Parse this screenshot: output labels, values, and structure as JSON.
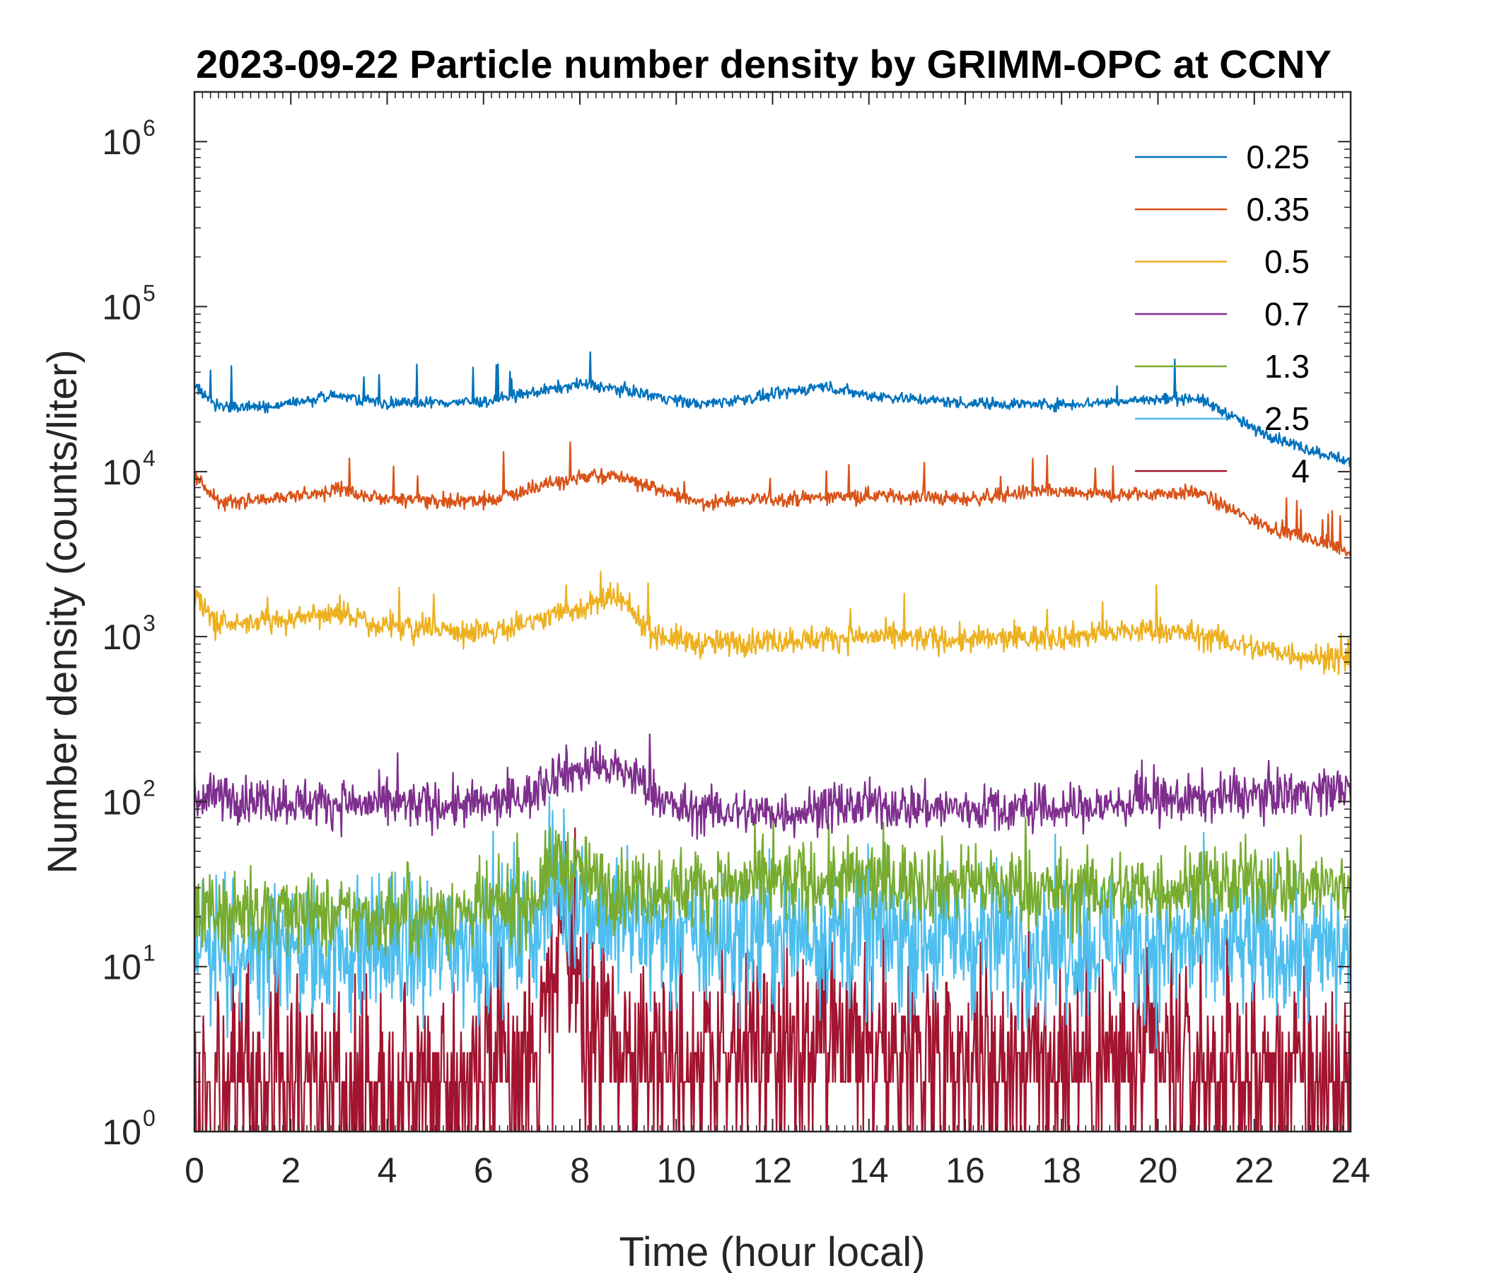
{
  "chart_data": {
    "type": "line",
    "title": "2023-09-22 Particle number density by GRIMM-OPC at CCNY",
    "xlabel": "Time (hour local)",
    "ylabel": "Number density (counts/liter)",
    "xlim": [
      0,
      24
    ],
    "ylim": [
      1,
      2000000
    ],
    "yscale": "log",
    "x_ticks": [
      "0",
      "2",
      "4",
      "6",
      "8",
      "10",
      "12",
      "14",
      "16",
      "18",
      "20",
      "22",
      "24"
    ],
    "y_ticks": [
      {
        "value": 1,
        "base": "10",
        "exp": "0"
      },
      {
        "value": 10,
        "base": "10",
        "exp": "1"
      },
      {
        "value": 100,
        "base": "10",
        "exp": "2"
      },
      {
        "value": 1000,
        "base": "10",
        "exp": "3"
      },
      {
        "value": 10000,
        "base": "10",
        "exp": "4"
      },
      {
        "value": 100000,
        "base": "10",
        "exp": "5"
      },
      {
        "value": 1000000,
        "base": "10",
        "exp": "6"
      }
    ],
    "legend_position": "top-right",
    "series": [
      {
        "name": "0.25",
        "color": "#0072BD",
        "noise": 0.04,
        "x": [
          0,
          0.5,
          1.5,
          3,
          4,
          6,
          8,
          9,
          10.5,
          12,
          13,
          14,
          16,
          18,
          19.5,
          20.8,
          21.5,
          22,
          23,
          24
        ],
        "y": [
          33000,
          25000,
          24500,
          29000,
          26000,
          26500,
          34000,
          31000,
          25500,
          29000,
          33000,
          29000,
          26000,
          25500,
          27000,
          28000,
          22000,
          18000,
          14000,
          11500
        ]
      },
      {
        "name": "0.35",
        "color": "#D95319",
        "noise": 0.05,
        "x": [
          0,
          0.5,
          1.5,
          3,
          4,
          6,
          8,
          8.7,
          9.5,
          10.5,
          12,
          14,
          16,
          17.5,
          19,
          20.8,
          22,
          23,
          24
        ],
        "y": [
          9500,
          6500,
          6800,
          7800,
          6800,
          6600,
          9200,
          9600,
          8000,
          6500,
          6800,
          7200,
          6800,
          7600,
          7200,
          7500,
          5000,
          4000,
          3300
        ]
      },
      {
        "name": "0.5",
        "color": "#EDB120",
        "noise": 0.09,
        "x": [
          0,
          0.5,
          1.5,
          3,
          4,
          6,
          8,
          8.8,
          9.5,
          10.5,
          12,
          14,
          16,
          18,
          20,
          21,
          22,
          24
        ],
        "y": [
          1800,
          1150,
          1250,
          1400,
          1150,
          1050,
          1500,
          1700,
          1050,
          900,
          950,
          1000,
          950,
          1000,
          1100,
          1000,
          850,
          700
        ]
      },
      {
        "name": "0.7",
        "color": "#7E2F8E",
        "noise": 0.16,
        "x": [
          0,
          2,
          4,
          6,
          7,
          7.5,
          8.5,
          9,
          10,
          12,
          14,
          16,
          18,
          20,
          22,
          24
        ],
        "y": [
          110,
          100,
          95,
          95,
          110,
          150,
          160,
          150,
          90,
          85,
          95,
          90,
          90,
          100,
          110,
          120
        ]
      },
      {
        "name": "1.3",
        "color": "#77AC30",
        "noise": 0.28,
        "x": [
          0,
          2,
          4,
          6,
          7,
          7.5,
          8.5,
          10,
          12,
          14,
          16,
          18,
          20,
          22,
          24
        ],
        "y": [
          22,
          20,
          20,
          22,
          25,
          45,
          30,
          30,
          32,
          34,
          32,
          28,
          30,
          32,
          30
        ]
      },
      {
        "name": "2.5",
        "color": "#4DBEEE",
        "noise": 0.32,
        "x": [
          0,
          2,
          4,
          6,
          7,
          7.6,
          8.5,
          10,
          12,
          14,
          16,
          18,
          20,
          22,
          24
        ],
        "y": [
          13,
          12,
          13,
          14,
          17,
          33,
          20,
          15,
          16,
          16,
          15,
          14,
          14,
          13,
          12
        ]
      },
      {
        "name": "4",
        "color": "#A2142F",
        "noise": 0.45,
        "x": [
          0,
          2,
          4,
          6,
          7,
          7.5,
          7.7,
          8,
          9,
          12,
          14,
          16,
          18,
          20,
          22,
          24
        ],
        "y": [
          1.8,
          2,
          2,
          2.2,
          2.4,
          8,
          20,
          5,
          3,
          3,
          3,
          3,
          2.8,
          2.5,
          2.2,
          2
        ]
      }
    ]
  }
}
